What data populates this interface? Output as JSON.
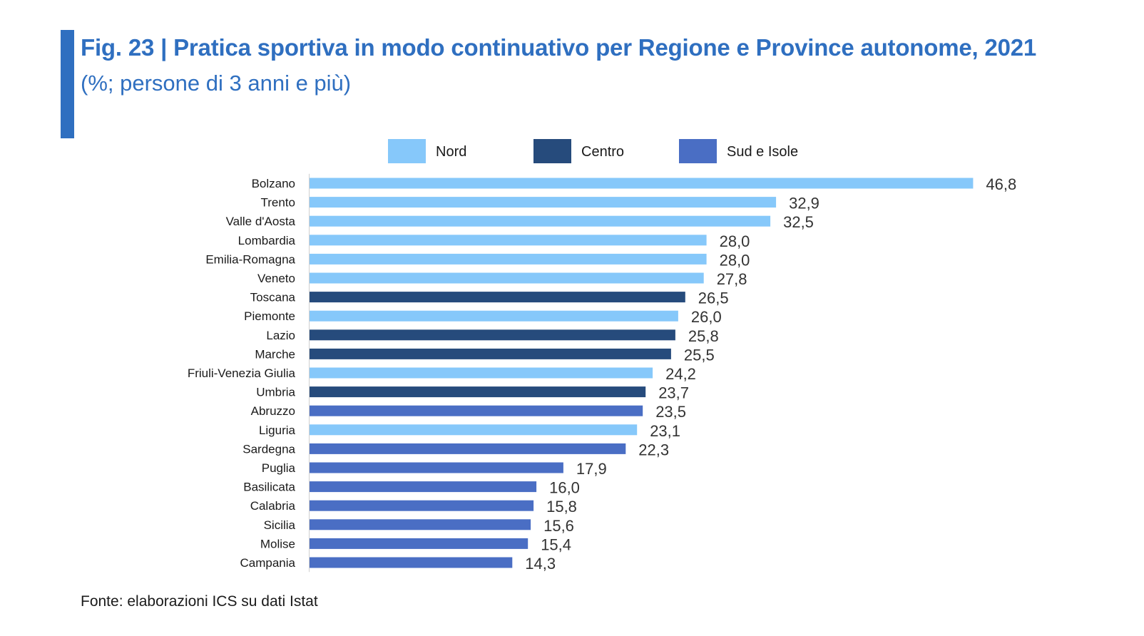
{
  "title": "Fig. 23 | Pratica sportiva in modo continuativo per Regione e Province autonome, 2021",
  "subtitle": "(%; persone di 3 anni e più)",
  "source": "Fonte: elaborazioni ICS su dati Istat",
  "colors": {
    "accent": "#2f6fc0",
    "Nord": "#86c8fa",
    "Centro": "#264b7c",
    "Sud e Isole": "#4a6ec4"
  },
  "chart_data": {
    "type": "bar",
    "orientation": "horizontal",
    "title": "Fig. 23 | Pratica sportiva in modo continuativo per Regione e Province autonome, 2021",
    "subtitle": "(%; persone di 3 anni e più)",
    "xlim": [
      0,
      50
    ],
    "grid": false,
    "legend": {
      "placement": "top",
      "entries": [
        "Nord",
        "Centro",
        "Sud e Isole"
      ]
    },
    "categories": [
      "Bolzano",
      "Trento",
      "Valle d'Aosta",
      "Lombardia",
      "Emilia-Romagna",
      "Veneto",
      "Toscana",
      "Piemonte",
      "Lazio",
      "Marche",
      "Friuli-Venezia Giulia",
      "Umbria",
      "Abruzzo",
      "Liguria",
      "Sardegna",
      "Puglia",
      "Basilicata",
      "Calabria",
      "Sicilia",
      "Molise",
      "Campania"
    ],
    "values": [
      46.8,
      32.9,
      32.5,
      28.0,
      28.0,
      27.8,
      26.5,
      26.0,
      25.8,
      25.5,
      24.2,
      23.7,
      23.5,
      23.1,
      22.3,
      17.9,
      16.0,
      15.8,
      15.6,
      15.4,
      14.3
    ],
    "value_labels": [
      "46,8",
      "32,9",
      "32,5",
      "28,0",
      "28,0",
      "27,8",
      "26,5",
      "26,0",
      "25,8",
      "25,5",
      "24,2",
      "23,7",
      "23,5",
      "23,1",
      "22,3",
      "17,9",
      "16,0",
      "15,8",
      "15,6",
      "15,4",
      "14,3"
    ],
    "groups": [
      "Nord",
      "Nord",
      "Nord",
      "Nord",
      "Nord",
      "Nord",
      "Centro",
      "Nord",
      "Centro",
      "Centro",
      "Nord",
      "Centro",
      "Sud e Isole",
      "Nord",
      "Sud e Isole",
      "Sud e Isole",
      "Sud e Isole",
      "Sud e Isole",
      "Sud e Isole",
      "Sud e Isole",
      "Sud e Isole"
    ]
  }
}
